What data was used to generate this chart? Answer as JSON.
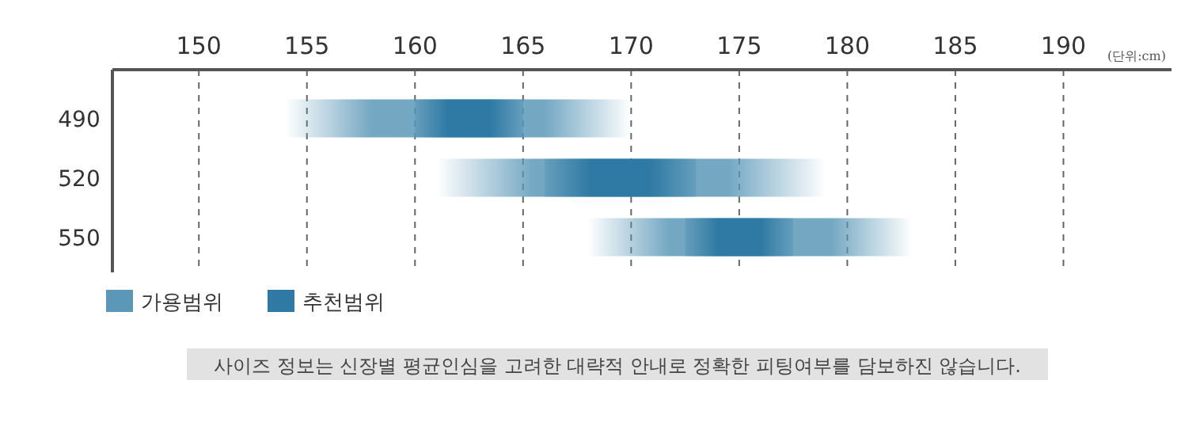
{
  "chart_data": {
    "type": "bar",
    "orientation": "horizontal",
    "categories": [
      "490",
      "520",
      "550"
    ],
    "series": [
      {
        "name": "가용범위",
        "color": "#5b98b8",
        "base": [
          154,
          161,
          168
        ],
        "values": [
          16,
          18,
          15
        ]
      },
      {
        "name": "추천범위",
        "color": "#2f7aa4",
        "base": [
          160,
          166,
          172.5
        ],
        "values": [
          5,
          7,
          5
        ]
      }
    ],
    "xlim": [
      146,
      195
    ],
    "xticks": [
      150,
      155,
      160,
      165,
      170,
      175,
      180,
      185,
      190
    ],
    "grid": "x",
    "legend": "bottom left",
    "annotations": [
      "(단위:cm)",
      "사이즈 정보는 신장별 평균인심을 고려한 대략적 안내로 정확한 피팅여부를 담보하진 않습니다."
    ]
  }
}
